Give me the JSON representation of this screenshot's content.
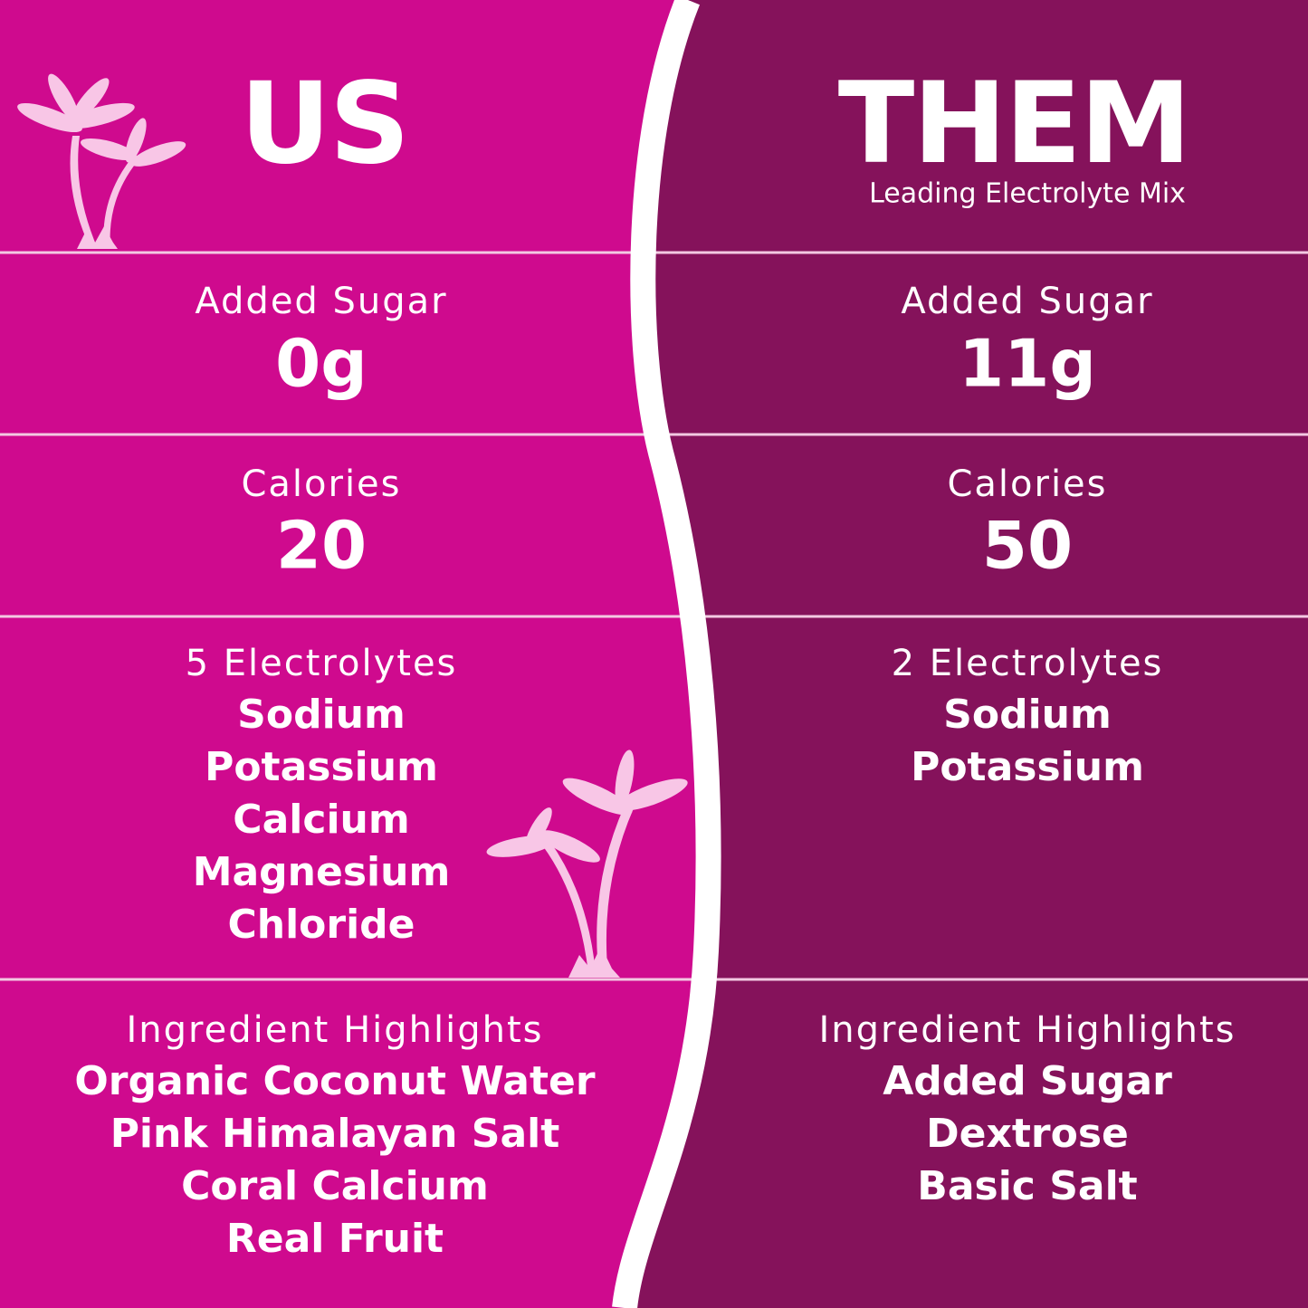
{
  "us": {
    "title": "US",
    "sections": [
      {
        "label": "Added Sugar",
        "items": [
          "0g"
        ]
      },
      {
        "label": "Calories",
        "items": [
          "20"
        ]
      },
      {
        "label": "5 Electrolytes",
        "items": [
          "Sodium",
          "Potassium",
          "Calcium",
          "Magnesium",
          "Chloride"
        ]
      },
      {
        "label": "Ingredient Highlights",
        "items": [
          "Organic Coconut Water",
          "Pink Himalayan Salt",
          "Coral Calcium",
          "Real Fruit"
        ]
      }
    ]
  },
  "them": {
    "title": "THEM",
    "subtitle": "Leading Electrolyte Mix",
    "sections": [
      {
        "label": "Added Sugar",
        "items": [
          "11g"
        ]
      },
      {
        "label": "Calories",
        "items": [
          "50"
        ]
      },
      {
        "label": "2 Electrolytes",
        "items": [
          "Sodium",
          "Potassium"
        ]
      },
      {
        "label": "Ingredient Highlights",
        "items": [
          "Added Sugar",
          "Dextrose",
          "Basic Salt"
        ]
      }
    ]
  }
}
